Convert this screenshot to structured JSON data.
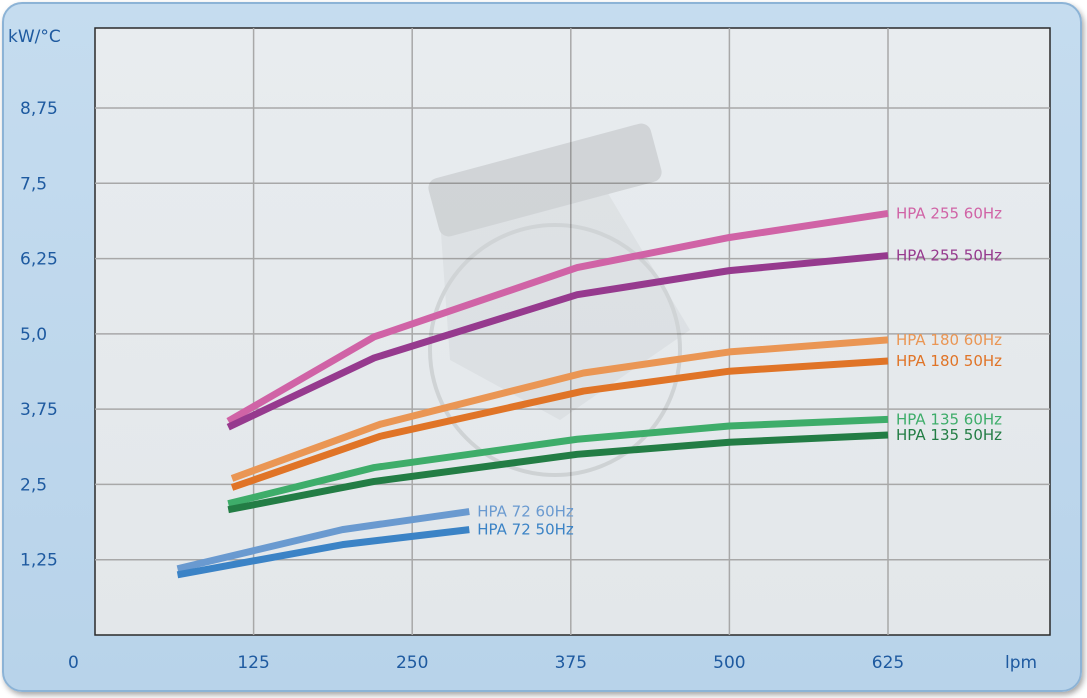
{
  "chart_data": {
    "type": "line",
    "ylabel": "kW/°C",
    "xlabel": "lpm",
    "xlim": [
      0,
      650
    ],
    "ylim": [
      0,
      10
    ],
    "x_ticks": [
      125,
      250,
      375,
      500,
      625
    ],
    "x_tick_labels": [
      "125",
      "250",
      "375",
      "500",
      "625"
    ],
    "y_ticks": [
      1.25,
      2.5,
      3.75,
      5.0,
      6.25,
      7.5,
      8.75
    ],
    "y_tick_labels": [
      "1,25",
      "2,5",
      "3,75",
      "5,0",
      "6,25",
      "7,5",
      "8,75"
    ],
    "origin_label": "0",
    "grid": true,
    "series": [
      {
        "name": "HPA 255 60Hz",
        "color": "#d063a6",
        "x": [
          105,
          220,
          380,
          500,
          625
        ],
        "y": [
          3.55,
          4.95,
          6.1,
          6.6,
          7.0
        ]
      },
      {
        "name": "HPA 255 50Hz",
        "color": "#963a8e",
        "x": [
          105,
          220,
          380,
          500,
          625
        ],
        "y": [
          3.45,
          4.6,
          5.65,
          6.05,
          6.3
        ]
      },
      {
        "name": "HPA 180 60Hz",
        "color": "#ea9654",
        "x": [
          108,
          225,
          385,
          500,
          625
        ],
        "y": [
          2.6,
          3.5,
          4.35,
          4.7,
          4.9
        ]
      },
      {
        "name": "HPA 180 50Hz",
        "color": "#e07427",
        "x": [
          108,
          225,
          385,
          500,
          625
        ],
        "y": [
          2.45,
          3.3,
          4.05,
          4.38,
          4.55
        ]
      },
      {
        "name": "HPA 135 60Hz",
        "color": "#3ead6a",
        "x": [
          105,
          220,
          380,
          500,
          625
        ],
        "y": [
          2.18,
          2.78,
          3.25,
          3.47,
          3.58
        ]
      },
      {
        "name": "HPA 135 50Hz",
        "color": "#237d45",
        "x": [
          105,
          220,
          380,
          500,
          625
        ],
        "y": [
          2.08,
          2.55,
          3.0,
          3.2,
          3.32
        ]
      },
      {
        "name": "HPA 72 60Hz",
        "color": "#6a9ad0",
        "x": [
          65,
          195,
          295
        ],
        "y": [
          1.1,
          1.75,
          2.05
        ]
      },
      {
        "name": "HPA 72 50Hz",
        "color": "#3b83c6",
        "x": [
          65,
          195,
          295
        ],
        "y": [
          1.0,
          1.5,
          1.75
        ]
      }
    ]
  }
}
